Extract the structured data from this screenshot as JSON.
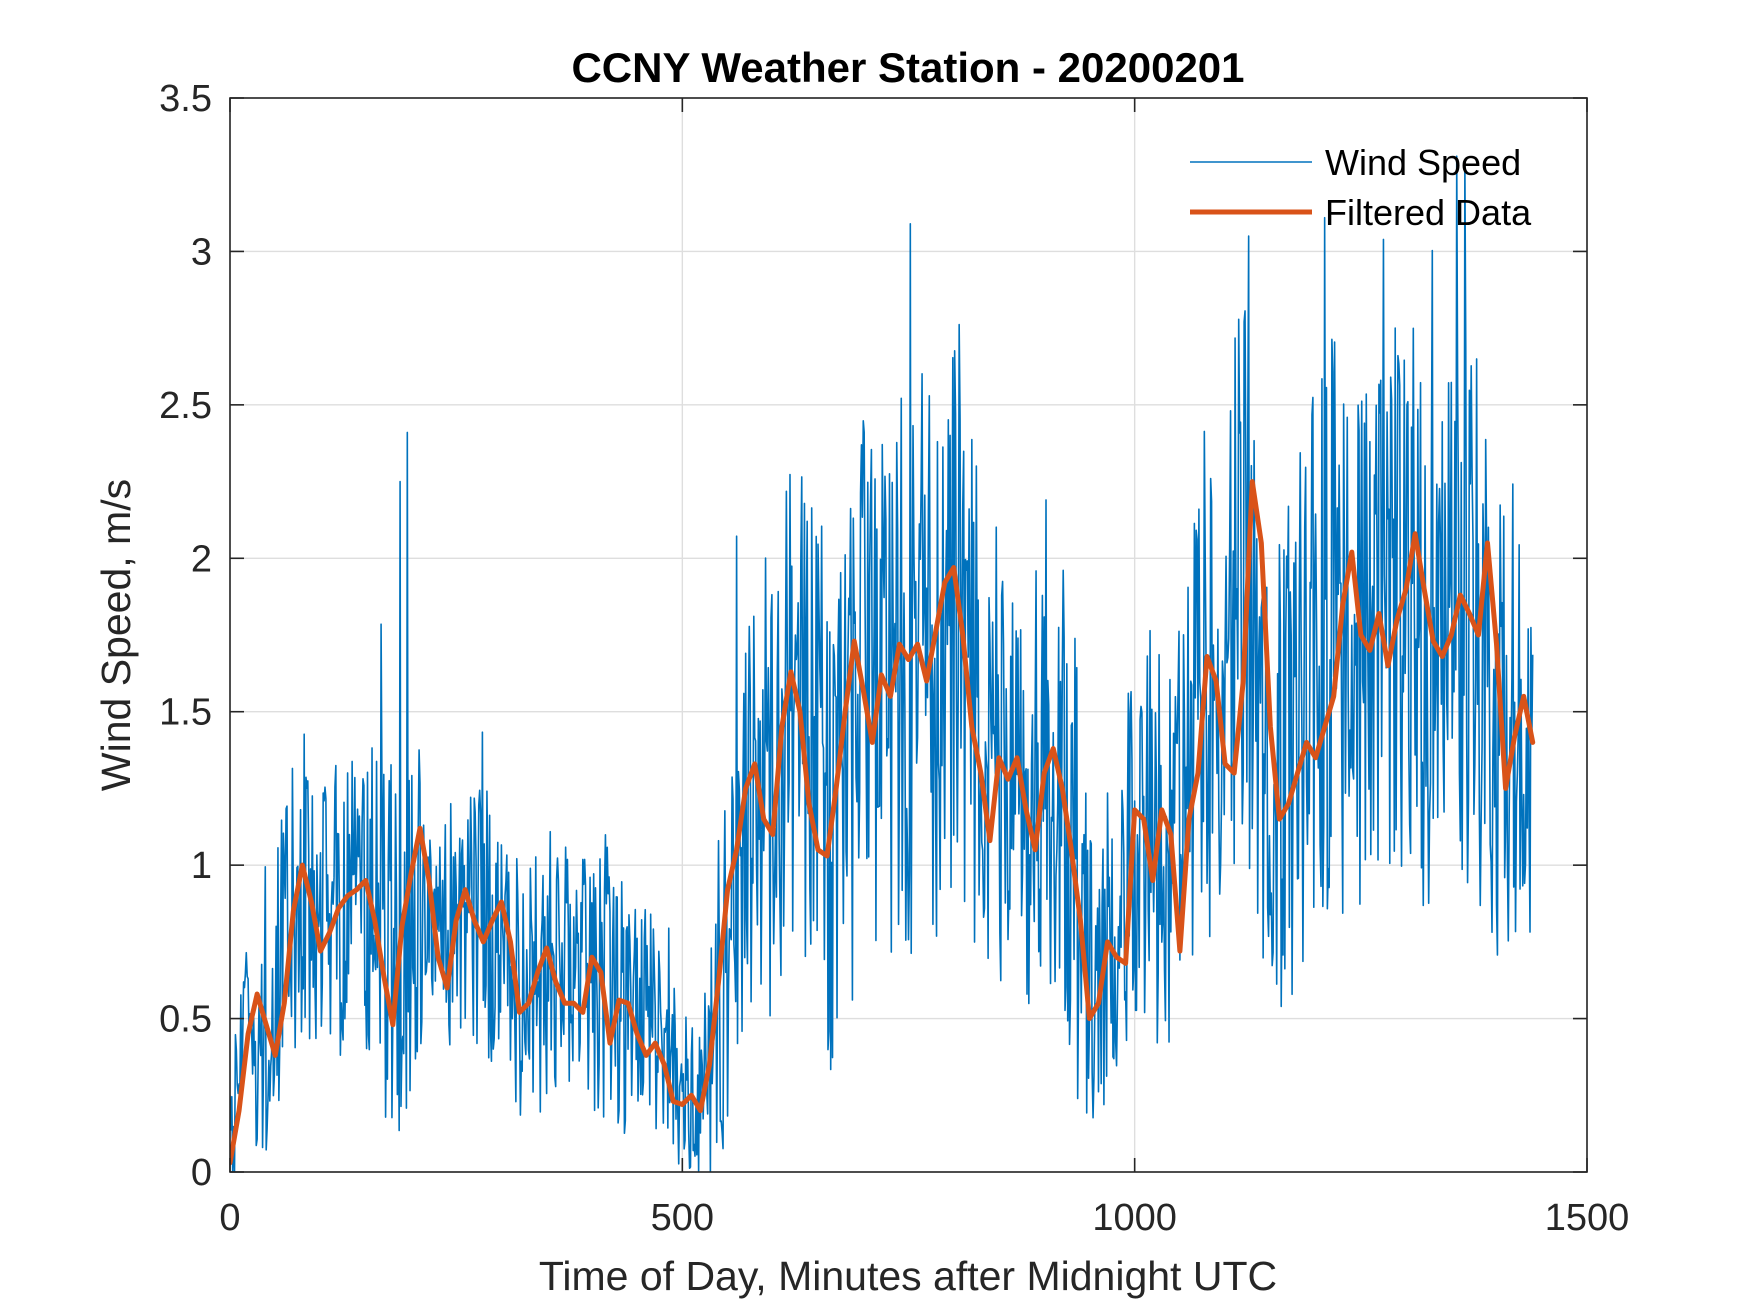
{
  "chart_data": {
    "type": "line",
    "title": "CCNY Weather Station - 20200201",
    "xlabel": "Time of Day, Minutes after Midnight UTC",
    "ylabel": "Wind Speed, m/s",
    "xlim": [
      0,
      1500
    ],
    "ylim": [
      0,
      3.5
    ],
    "xticks": [
      0,
      500,
      1000,
      1500
    ],
    "xtick_labels": [
      "0",
      "500",
      "1000",
      "1500"
    ],
    "yticks": [
      0,
      0.5,
      1,
      1.5,
      2,
      2.5,
      3,
      3.5
    ],
    "ytick_labels": [
      "0",
      "0.5",
      "1",
      "1.5",
      "2",
      "2.5",
      "3",
      "3.5"
    ],
    "grid": true,
    "legend": {
      "location": "top-right",
      "entries": [
        "Wind Speed",
        "Filtered Data"
      ]
    },
    "series": [
      {
        "name": "Wind Speed",
        "color": "#0072BD",
        "style": "thin-line",
        "note": "noisy per-minute wind speed; profile given as approximate running level with noise envelope",
        "x": [
          0,
          20,
          40,
          60,
          80,
          100,
          120,
          140,
          160,
          180,
          200,
          220,
          240,
          260,
          280,
          300,
          320,
          340,
          360,
          380,
          400,
          420,
          440,
          460,
          480,
          500,
          520,
          540,
          560,
          580,
          600,
          620,
          640,
          660,
          680,
          700,
          720,
          740,
          760,
          780,
          800,
          820,
          840,
          860,
          880,
          900,
          920,
          940,
          960,
          980,
          1000,
          1020,
          1040,
          1060,
          1080,
          1100,
          1120,
          1140,
          1160,
          1180,
          1200,
          1220,
          1240,
          1260,
          1280,
          1300,
          1320,
          1340,
          1360,
          1380,
          1400,
          1420,
          1440
        ],
        "values": [
          0.1,
          0.45,
          0.45,
          0.8,
          0.95,
          0.85,
          0.8,
          0.9,
          0.9,
          0.65,
          0.75,
          1.05,
          0.75,
          0.85,
          0.8,
          0.8,
          0.55,
          0.6,
          0.7,
          0.6,
          0.55,
          0.65,
          0.5,
          0.5,
          0.4,
          0.3,
          0.25,
          0.4,
          1.0,
          1.25,
          1.2,
          1.55,
          1.45,
          1.1,
          1.3,
          1.6,
          1.55,
          1.6,
          1.7,
          1.65,
          1.85,
          1.6,
          1.3,
          1.25,
          1.15,
          1.3,
          1.15,
          0.75,
          0.6,
          0.85,
          1.1,
          1.1,
          0.95,
          1.3,
          1.6,
          1.45,
          2.1,
          1.3,
          1.3,
          1.45,
          1.75,
          1.75,
          1.6,
          1.75,
          1.9,
          1.85,
          1.7,
          1.75,
          1.9,
          1.75,
          1.35,
          1.4,
          1.4
        ],
        "noise_amplitude": [
          0.2,
          0.4,
          0.45,
          0.5,
          0.5,
          0.45,
          0.45,
          0.5,
          0.55,
          0.6,
          0.6,
          0.55,
          0.45,
          0.45,
          0.45,
          0.45,
          0.45,
          0.45,
          0.45,
          0.45,
          0.45,
          0.45,
          0.4,
          0.4,
          0.35,
          0.3,
          0.25,
          0.5,
          0.7,
          0.7,
          0.7,
          0.8,
          0.8,
          0.8,
          0.85,
          0.9,
          0.9,
          0.95,
          1.0,
          0.9,
          0.9,
          0.85,
          0.8,
          0.75,
          0.75,
          0.75,
          0.7,
          0.6,
          0.5,
          0.55,
          0.6,
          0.65,
          0.7,
          0.75,
          0.85,
          0.9,
          0.95,
          0.85,
          0.85,
          0.85,
          0.9,
          0.9,
          0.85,
          0.85,
          0.9,
          0.9,
          0.9,
          0.9,
          0.95,
          0.9,
          0.7,
          0.65,
          0.65
        ],
        "peaks": [
          [
            188,
            2.25
          ],
          [
            196,
            2.41
          ],
          [
            752,
            3.09
          ],
          [
            1126,
            3.05
          ],
          [
            1210,
            3.11
          ],
          [
            1365,
            3.29
          ]
        ]
      },
      {
        "name": "Filtered Data",
        "color": "#D95319",
        "style": "thick-line",
        "x": [
          0,
          10,
          20,
          30,
          40,
          50,
          60,
          70,
          80,
          90,
          100,
          110,
          120,
          130,
          140,
          150,
          160,
          170,
          180,
          190,
          200,
          210,
          220,
          230,
          240,
          250,
          260,
          270,
          280,
          290,
          300,
          310,
          320,
          330,
          340,
          350,
          360,
          370,
          380,
          390,
          400,
          410,
          420,
          430,
          440,
          450,
          460,
          470,
          480,
          490,
          500,
          510,
          520,
          530,
          540,
          550,
          560,
          570,
          580,
          590,
          600,
          610,
          620,
          630,
          640,
          650,
          660,
          670,
          680,
          690,
          700,
          710,
          720,
          730,
          740,
          750,
          760,
          770,
          780,
          790,
          800,
          810,
          820,
          830,
          840,
          850,
          860,
          870,
          880,
          890,
          900,
          910,
          920,
          930,
          940,
          950,
          960,
          970,
          980,
          990,
          1000,
          1010,
          1020,
          1030,
          1040,
          1050,
          1060,
          1070,
          1080,
          1090,
          1100,
          1110,
          1120,
          1130,
          1140,
          1150,
          1160,
          1170,
          1180,
          1190,
          1200,
          1210,
          1220,
          1230,
          1240,
          1250,
          1260,
          1270,
          1280,
          1290,
          1300,
          1310,
          1320,
          1330,
          1340,
          1350,
          1360,
          1370,
          1380,
          1390,
          1400,
          1410,
          1420,
          1430,
          1440
        ],
        "values": [
          0.03,
          0.2,
          0.45,
          0.58,
          0.48,
          0.38,
          0.55,
          0.85,
          1.0,
          0.88,
          0.72,
          0.78,
          0.86,
          0.9,
          0.92,
          0.95,
          0.82,
          0.64,
          0.48,
          0.8,
          0.97,
          1.12,
          0.95,
          0.7,
          0.6,
          0.82,
          0.92,
          0.82,
          0.75,
          0.82,
          0.88,
          0.75,
          0.52,
          0.55,
          0.65,
          0.73,
          0.62,
          0.55,
          0.55,
          0.52,
          0.7,
          0.65,
          0.42,
          0.56,
          0.55,
          0.45,
          0.38,
          0.42,
          0.35,
          0.23,
          0.22,
          0.25,
          0.2,
          0.35,
          0.62,
          0.92,
          1.05,
          1.25,
          1.33,
          1.15,
          1.1,
          1.45,
          1.63,
          1.5,
          1.2,
          1.05,
          1.03,
          1.25,
          1.5,
          1.73,
          1.57,
          1.4,
          1.62,
          1.55,
          1.72,
          1.67,
          1.72,
          1.6,
          1.76,
          1.92,
          1.97,
          1.75,
          1.45,
          1.3,
          1.08,
          1.35,
          1.28,
          1.35,
          1.18,
          1.05,
          1.3,
          1.38,
          1.25,
          1.05,
          0.82,
          0.5,
          0.55,
          0.75,
          0.7,
          0.68,
          1.18,
          1.15,
          0.95,
          1.18,
          1.1,
          0.72,
          1.15,
          1.3,
          1.68,
          1.6,
          1.33,
          1.3,
          1.6,
          2.25,
          2.05,
          1.45,
          1.15,
          1.2,
          1.3,
          1.4,
          1.35,
          1.45,
          1.55,
          1.85,
          2.02,
          1.75,
          1.7,
          1.82,
          1.65,
          1.8,
          1.9,
          2.08,
          1.9,
          1.73,
          1.68,
          1.75,
          1.88,
          1.82,
          1.75,
          2.05,
          1.72,
          1.25,
          1.42,
          1.55,
          1.4
        ]
      }
    ]
  }
}
